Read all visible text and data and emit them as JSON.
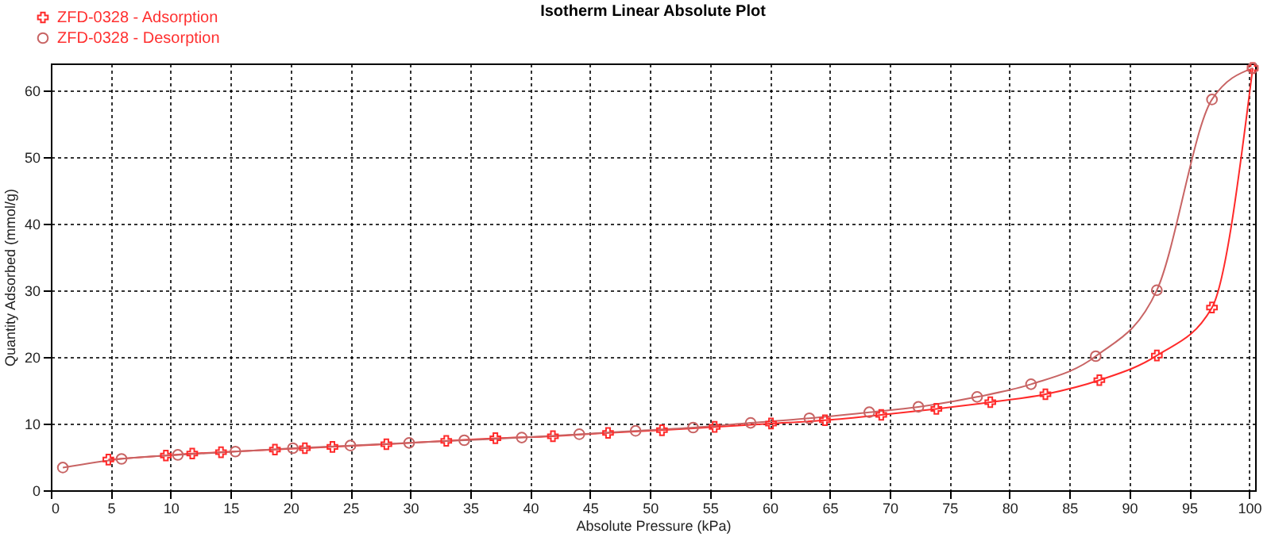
{
  "chart_data": {
    "type": "line",
    "title": "Isotherm Linear Absolute Plot",
    "xlabel": "Absolute Pressure (kPa)",
    "ylabel": "Quantity Adsorbed (mmol/g)",
    "series": [
      {
        "name": "ZFD-0328 - Adsorption",
        "color": "#ff2a2a",
        "marker": "cross",
        "x": [
          4.8,
          9.6,
          11.8,
          14.2,
          18.7,
          21.2,
          23.5,
          28,
          33,
          37.1,
          41.9,
          46.5,
          51,
          55.4,
          60.1,
          64.6,
          69.3,
          73.9,
          78.4,
          83,
          87.5,
          92.3,
          96.9,
          100.3
        ],
        "values": [
          4.6,
          5.2,
          5.5,
          5.7,
          6.1,
          6.3,
          6.5,
          6.9,
          7.4,
          7.8,
          8.1,
          8.6,
          9.0,
          9.5,
          10.0,
          10.5,
          11.3,
          12.2,
          13.2,
          14.4,
          16.5,
          20.2,
          27.4,
          63.3
        ]
      },
      {
        "name": "ZFD-0328 - Desorption",
        "color": "#c86464",
        "marker": "circle",
        "x": [
          1.0,
          5.9,
          10.6,
          15.4,
          20.2,
          25,
          29.9,
          34.5,
          39.3,
          44.1,
          48.8,
          53.6,
          58.4,
          63.3,
          68.3,
          72.4,
          77.3,
          81.8,
          87.2,
          92.3,
          96.9,
          100.3
        ],
        "values": [
          3.4,
          4.7,
          5.3,
          5.8,
          6.3,
          6.7,
          7.1,
          7.5,
          7.9,
          8.4,
          8.9,
          9.4,
          10.1,
          10.8,
          11.7,
          12.5,
          14.0,
          15.9,
          20.1,
          30.0,
          58.6,
          63.3
        ]
      }
    ],
    "xlim": [
      0,
      100.5
    ],
    "xticks": [
      0,
      5,
      10,
      15,
      20,
      25,
      30,
      35,
      40,
      45,
      50,
      55,
      60,
      65,
      70,
      75,
      80,
      85,
      90,
      95,
      100
    ],
    "ylim": [
      0,
      64
    ],
    "yticks": [
      0,
      10,
      20,
      30,
      40,
      50,
      60
    ],
    "grid": true,
    "legend": "top left",
    "line_style": "solid"
  }
}
